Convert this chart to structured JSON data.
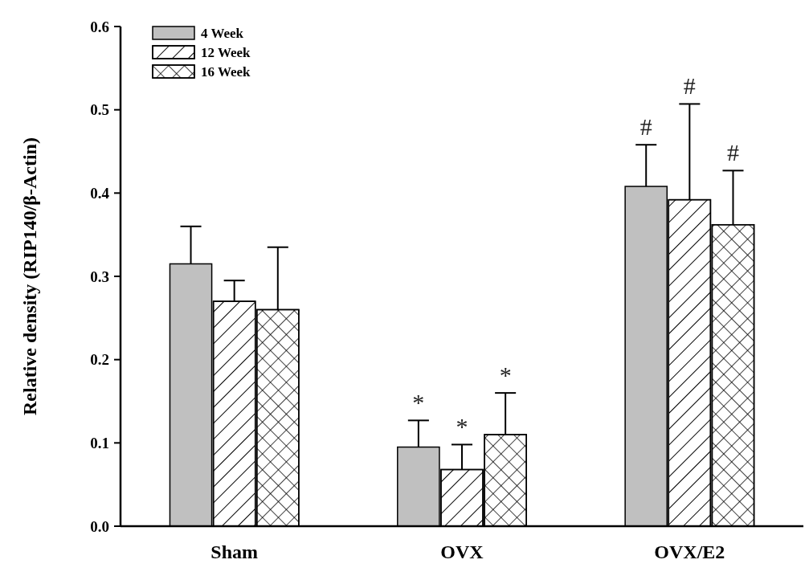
{
  "chart_data": {
    "type": "bar",
    "ylabel": "Relative density (RIP140/β-Actin)",
    "categories": [
      "Sham",
      "OVX",
      "OVX/E2"
    ],
    "series": [
      {
        "name": "4 Week",
        "color": "#c0c0c0",
        "values": [
          0.315,
          0.095,
          0.408
        ],
        "errors": [
          0.045,
          0.032,
          0.05
        ]
      },
      {
        "name": "12 Week",
        "color": "#ffffff",
        "values": [
          0.27,
          0.068,
          0.392
        ],
        "errors": [
          0.025,
          0.03,
          0.115
        ]
      },
      {
        "name": "16 Week",
        "color": "#ffffff",
        "values": [
          0.26,
          0.11,
          0.362
        ],
        "errors": [
          0.075,
          0.05,
          0.065
        ]
      }
    ],
    "ylim": [
      0,
      0.6
    ],
    "yticks": [
      {
        "value": 0,
        "label": "0.0"
      },
      {
        "value": 0.1,
        "label": "0.1"
      },
      {
        "value": 0.2,
        "label": "0.2"
      },
      {
        "value": 0.3,
        "label": "0.3"
      },
      {
        "value": 0.4,
        "label": "0.4"
      },
      {
        "value": 0.5,
        "label": "0.5"
      },
      {
        "value": 0.6,
        "label": "0.6"
      }
    ],
    "annotations": [
      "*",
      "*",
      "*",
      "#",
      "#",
      "#"
    ],
    "grid": false,
    "legend": "top left"
  }
}
